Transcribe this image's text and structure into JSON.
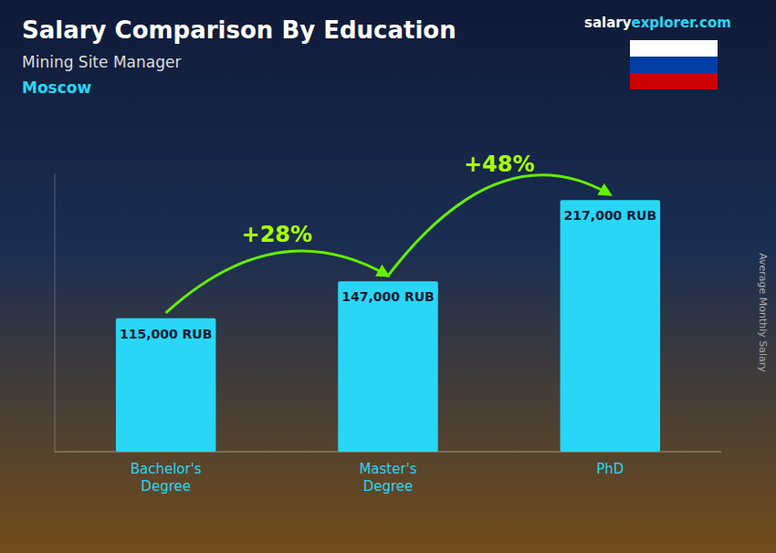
{
  "chart_data": {
    "type": "bar",
    "title": "Salary Comparison By Education",
    "subtitle": "Mining Site Manager",
    "city": "Moscow",
    "watermark": [
      "salary",
      "explorer.com"
    ],
    "ylabel": "Average Monthly Salary",
    "categories": [
      "Bachelor's\nDegree",
      "Master's\nDegree",
      "PhD"
    ],
    "values": [
      115000,
      147000,
      217000
    ],
    "value_labels": [
      "115,000 RUB",
      "147,000 RUB",
      "217,000 RUB"
    ],
    "data_labels": true,
    "annotations": [
      "+28%",
      "+48%"
    ],
    "color": "#29d6f5",
    "ylim": [
      0,
      240000
    ],
    "tick_labels": false,
    "grid": false
  }
}
